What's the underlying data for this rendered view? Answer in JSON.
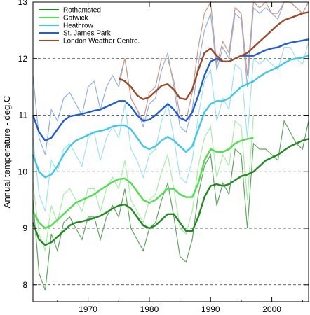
{
  "chart_data": {
    "type": "line",
    "title": "",
    "xlabel": "",
    "ylabel": "Annual temperature - deg.C",
    "xlim": [
      1961,
      2006
    ],
    "ylim": [
      7.7,
      13.0
    ],
    "x_ticks": [
      1970,
      1980,
      1990,
      2000
    ],
    "y_ticks": [
      8,
      9,
      10,
      11,
      12,
      13
    ],
    "dashed_gridlines_y": [
      8,
      9,
      10,
      11,
      12
    ],
    "legend_position": "top-left",
    "series": [
      {
        "name": "Rothamsted",
        "color": "#1e8c1e",
        "light_color": "#5fa85f",
        "x": [
          1961,
          1962,
          1963,
          1964,
          1965,
          1966,
          1967,
          1968,
          1969,
          1970,
          1971,
          1972,
          1973,
          1974,
          1975,
          1976,
          1977,
          1978,
          1979,
          1980,
          1981,
          1982,
          1983,
          1984,
          1985,
          1986,
          1987,
          1988,
          1989,
          1990,
          1991,
          1992,
          1993,
          1994,
          1995,
          1996,
          1997,
          1998,
          1999,
          2000,
          2001,
          2002,
          2003,
          2004,
          2005,
          2006
        ],
        "annual": [
          9.5,
          8.2,
          7.9,
          8.9,
          8.6,
          9.1,
          9.2,
          9.0,
          8.8,
          9.2,
          9.2,
          8.8,
          9.2,
          9.4,
          9.2,
          9.7,
          9.0,
          8.8,
          8.6,
          9.0,
          9.1,
          9.5,
          9.8,
          9.2,
          8.5,
          8.4,
          8.8,
          9.6,
          10.1,
          10.3,
          9.4,
          9.8,
          9.6,
          10.4,
          10.3,
          9.0,
          10.5,
          10.4,
          10.4,
          10.3,
          10.2,
          10.9,
          10.7,
          10.5,
          10.4,
          10.9
        ],
        "smoothed": [
          9.1,
          8.8,
          8.7,
          8.75,
          8.85,
          8.95,
          9.05,
          9.1,
          9.12,
          9.15,
          9.18,
          9.22,
          9.28,
          9.35,
          9.4,
          9.42,
          9.35,
          9.2,
          9.05,
          9.0,
          9.05,
          9.15,
          9.25,
          9.25,
          9.1,
          8.95,
          8.95,
          9.2,
          9.55,
          9.75,
          9.78,
          9.75,
          9.78,
          9.85,
          9.92,
          9.95,
          10.0,
          10.1,
          10.2,
          10.25,
          10.3,
          10.38,
          10.45,
          10.5,
          10.55,
          10.58
        ]
      },
      {
        "name": "Gatwick",
        "color": "#4ee04e",
        "light_color": "#a6eea6",
        "x": [
          1961,
          1962,
          1963,
          1964,
          1965,
          1966,
          1967,
          1968,
          1969,
          1970,
          1971,
          1972,
          1973,
          1974,
          1975,
          1976,
          1977,
          1978,
          1979,
          1980,
          1981,
          1982,
          1983,
          1984,
          1985,
          1986,
          1987,
          1988,
          1989,
          1990,
          1991,
          1992,
          1993,
          1994,
          1995,
          1996,
          1997
        ],
        "annual": [
          9.8,
          8.9,
          8.6,
          9.4,
          9.1,
          9.6,
          9.7,
          9.5,
          9.3,
          9.7,
          9.7,
          9.3,
          9.7,
          9.9,
          9.7,
          10.2,
          9.5,
          9.3,
          9.1,
          9.5,
          9.6,
          10.0,
          10.3,
          9.7,
          9.0,
          8.9,
          9.3,
          10.1,
          10.6,
          10.8,
          9.9,
          10.3,
          10.1,
          10.9,
          10.8,
          9.5,
          11.0
        ],
        "smoothed": [
          9.3,
          9.1,
          9.0,
          9.05,
          9.15,
          9.25,
          9.35,
          9.45,
          9.5,
          9.55,
          9.6,
          9.68,
          9.75,
          9.82,
          9.87,
          9.88,
          9.8,
          9.65,
          9.5,
          9.45,
          9.5,
          9.6,
          9.7,
          9.7,
          9.6,
          9.55,
          9.55,
          9.8,
          10.2,
          10.4,
          10.35,
          10.35,
          10.4,
          10.5,
          10.55,
          10.58,
          10.6
        ]
      },
      {
        "name": "Heathrow",
        "color": "#3ec8e8",
        "light_color": "#9fe2f4",
        "x": [
          1961,
          1962,
          1963,
          1964,
          1965,
          1966,
          1967,
          1968,
          1969,
          1970,
          1971,
          1972,
          1973,
          1974,
          1975,
          1976,
          1977,
          1978,
          1979,
          1980,
          1981,
          1982,
          1983,
          1984,
          1985,
          1986,
          1987,
          1988,
          1989,
          1990,
          1991,
          1992,
          1993,
          1994,
          1995,
          1996,
          1997,
          1998,
          1999,
          2000,
          2001,
          2002,
          2003,
          2004,
          2005,
          2006
        ],
        "annual": [
          10.6,
          9.6,
          9.3,
          10.2,
          10.0,
          10.4,
          10.5,
          10.3,
          10.1,
          10.6,
          10.7,
          10.2,
          10.6,
          10.8,
          10.6,
          11.2,
          10.4,
          10.2,
          9.9,
          10.3,
          10.4,
          10.9,
          11.2,
          10.6,
          9.9,
          9.8,
          10.2,
          11.0,
          11.6,
          11.8,
          10.9,
          11.3,
          11.1,
          11.9,
          11.8,
          10.6,
          12.0,
          11.9,
          12.0,
          11.9,
          11.8,
          12.2,
          12.2,
          12.0,
          11.9,
          12.3
        ],
        "smoothed": [
          10.3,
          10.0,
          9.9,
          9.95,
          10.1,
          10.3,
          10.45,
          10.55,
          10.6,
          10.65,
          10.7,
          10.72,
          10.75,
          10.8,
          10.82,
          10.82,
          10.75,
          10.6,
          10.45,
          10.4,
          10.45,
          10.55,
          10.62,
          10.55,
          10.45,
          10.35,
          10.45,
          10.75,
          11.05,
          11.2,
          11.25,
          11.25,
          11.3,
          11.4,
          11.5,
          11.55,
          11.6,
          11.68,
          11.75,
          11.8,
          11.85,
          11.92,
          11.98,
          12.0,
          12.02,
          12.05
        ]
      },
      {
        "name": "St. James Park",
        "color": "#1f5ed6",
        "light_color": "#8fb0ee",
        "x": [
          1961,
          1962,
          1963,
          1964,
          1965,
          1966,
          1967,
          1968,
          1969,
          1970,
          1971,
          1972,
          1973,
          1974,
          1975,
          1976,
          1977,
          1978,
          1979,
          1980,
          1981,
          1982,
          1983,
          1984,
          1985,
          1986,
          1987,
          1988,
          1989,
          1990,
          1991,
          1992,
          1993,
          1994,
          1995,
          1996,
          1997,
          1998,
          1999,
          2000,
          2001,
          2002,
          2003,
          2004,
          2005,
          2006
        ],
        "annual": [
          11.7,
          10.6,
          10.3,
          11.1,
          10.9,
          11.3,
          11.4,
          11.2,
          11.0,
          11.5,
          11.6,
          11.1,
          11.5,
          11.7,
          11.5,
          12.0,
          11.3,
          11.1,
          10.8,
          11.2,
          11.3,
          11.8,
          12.1,
          11.5,
          10.8,
          10.7,
          11.1,
          11.9,
          12.5,
          12.8,
          11.8,
          12.2,
          12.0,
          12.8,
          12.7,
          11.5,
          12.9,
          12.8,
          12.9,
          12.8,
          12.7,
          13.1,
          13.0,
          12.9,
          12.8,
          13.0
        ],
        "smoothed": [
          11.0,
          10.7,
          10.55,
          10.6,
          10.75,
          10.9,
          10.98,
          11.0,
          11.02,
          11.05,
          11.08,
          11.1,
          11.15,
          11.2,
          11.25,
          11.25,
          11.15,
          11.0,
          10.9,
          10.92,
          11.0,
          11.1,
          11.2,
          11.1,
          10.95,
          10.9,
          11.05,
          11.35,
          11.7,
          11.95,
          12.0,
          11.95,
          11.95,
          12.0,
          12.05,
          12.05,
          12.05,
          12.1,
          12.15,
          12.18,
          12.2,
          12.25,
          12.28,
          12.3,
          12.32,
          12.34
        ]
      },
      {
        "name": "London Weather Centre.",
        "color": "#9a4a26",
        "light_color": "#cc9a86",
        "x": [
          1975,
          1976,
          1977,
          1978,
          1979,
          1980,
          1981,
          1982,
          1983,
          1984,
          1985,
          1986,
          1987,
          1988,
          1989,
          1990,
          1991,
          1992,
          1993,
          1994,
          1995,
          1996,
          1997,
          1998,
          1999,
          2000,
          2001,
          2002,
          2003,
          2004,
          2005,
          2006
        ],
        "annual": [
          11.6,
          12.0,
          11.3,
          11.1,
          10.9,
          11.4,
          11.5,
          12.0,
          12.0,
          11.6,
          11.0,
          10.9,
          11.4,
          12.2,
          12.8,
          13.0,
          11.9,
          12.3,
          12.1,
          12.9,
          12.8,
          11.7,
          13.0,
          12.9,
          13.0,
          12.8,
          12.8,
          13.0,
          13.0,
          12.9,
          12.8,
          13.0
        ],
        "smoothed": [
          11.65,
          11.6,
          11.5,
          11.35,
          11.28,
          11.32,
          11.42,
          11.52,
          11.55,
          11.45,
          11.3,
          11.28,
          11.45,
          11.8,
          12.1,
          12.18,
          12.05,
          11.95,
          11.95,
          12.0,
          12.05,
          12.1,
          12.2,
          12.3,
          12.4,
          12.5,
          12.6,
          12.68,
          12.72,
          12.76,
          12.8,
          12.82
        ]
      }
    ]
  }
}
